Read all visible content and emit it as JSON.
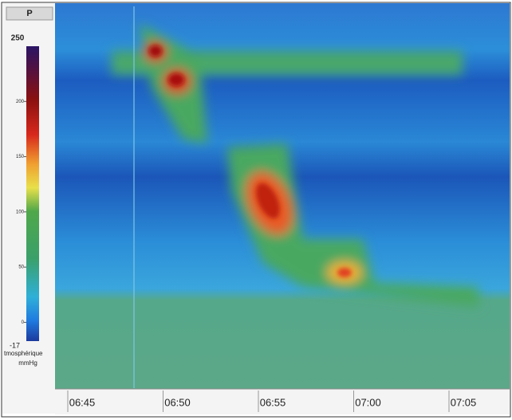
{
  "chart_data": {
    "type": "heatmap",
    "title": "P",
    "colorbar": {
      "clim": [
        -17,
        250
      ],
      "ticks": [
        0,
        50,
        100,
        150,
        200
      ],
      "label": "tmosphérique",
      "unit": "mmHg"
    },
    "xticks": [
      "06:45",
      "06:50",
      "06:55",
      "07:00",
      "07:05"
    ]
  }
}
